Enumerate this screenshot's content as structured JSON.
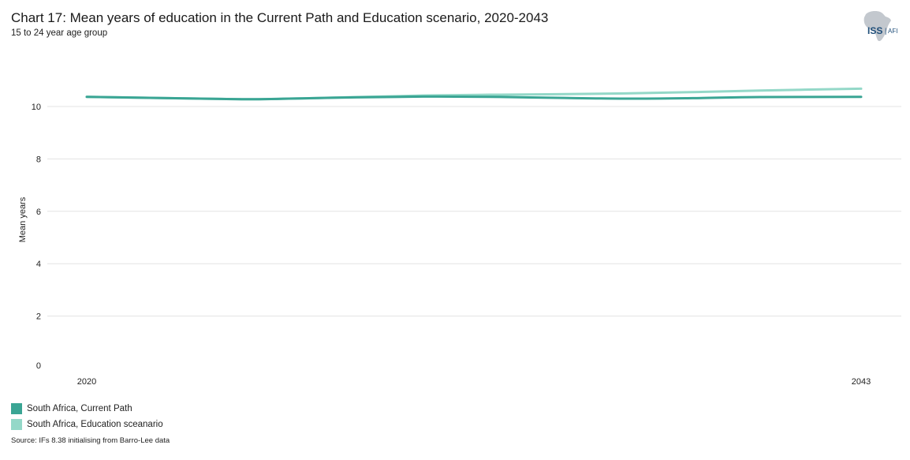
{
  "header": {
    "title": "Chart 17: Mean years of education in the Current Path and Education scenario, 2020-2043",
    "subtitle": "15 to 24 year age group"
  },
  "logo": {
    "text_main": "ISS",
    "text_sub": "AFI",
    "icon": "africa-map-icon"
  },
  "chart_data": {
    "type": "line",
    "title": "Chart 17: Mean years of education in the Current Path and Education scenario, 2020-2043",
    "subtitle": "15 to 24 year age group",
    "xlabel": "",
    "ylabel": "Mean years",
    "x_ticks": [
      "2020",
      "2043"
    ],
    "y_ticks": [
      "0",
      "2",
      "4",
      "6",
      "8",
      "10"
    ],
    "xlim": [
      2020,
      2043
    ],
    "ylim": [
      0,
      11
    ],
    "grid": true,
    "legend_position": "bottom-left",
    "series": [
      {
        "name": "South Africa, Current Path",
        "color": "#3aa594",
        "x": [
          2020,
          2024,
          2025,
          2026,
          2028,
          2030,
          2032,
          2034,
          2036,
          2038,
          2040,
          2043
        ],
        "values": [
          10.37,
          10.29,
          10.28,
          10.3,
          10.35,
          10.38,
          10.37,
          10.33,
          10.3,
          10.32,
          10.36,
          10.37
        ]
      },
      {
        "name": "South Africa, Education sceanario",
        "color": "#94d8c8",
        "x": [
          2020,
          2024,
          2025,
          2026,
          2028,
          2030,
          2032,
          2034,
          2036,
          2038,
          2040,
          2043
        ],
        "values": [
          10.37,
          10.29,
          10.28,
          10.3,
          10.36,
          10.42,
          10.45,
          10.47,
          10.5,
          10.55,
          10.61,
          10.68
        ]
      }
    ]
  },
  "footer": {
    "source": "Source: IFs 8.38 initialising from Barro-Lee data"
  }
}
